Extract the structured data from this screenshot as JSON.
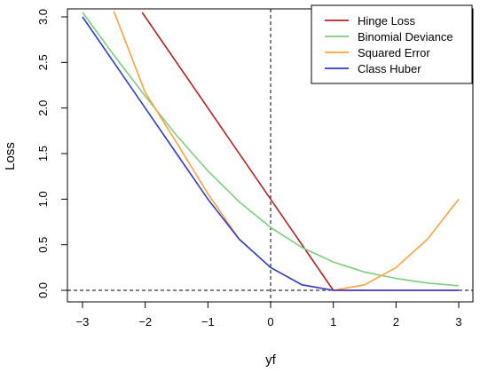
{
  "chart_data": {
    "type": "line",
    "title": "",
    "xlabel": "yf",
    "ylabel": "Loss",
    "xlim": [
      -3,
      3
    ],
    "ylim": [
      0,
      3
    ],
    "xticks": [
      -3,
      -2,
      -1,
      0,
      1,
      2,
      3
    ],
    "yticks": [
      0.0,
      0.5,
      1.0,
      1.5,
      2.0,
      2.5,
      3.0
    ],
    "xtick_labels": [
      "−3",
      "−2",
      "−1",
      "0",
      "1",
      "2",
      "3"
    ],
    "ytick_labels": [
      "0.0",
      "0.5",
      "1.0",
      "1.5",
      "2.0",
      "2.5",
      "3.0"
    ],
    "grid": false,
    "legend_position": "top-right",
    "reference_lines": [
      {
        "orientation": "vertical",
        "at": 0,
        "style": "dashed",
        "color": "#000000"
      },
      {
        "orientation": "horizontal",
        "at": 0,
        "style": "dashed",
        "color": "#000000"
      }
    ],
    "series": [
      {
        "name": "Hinge Loss",
        "color": "#b22222",
        "x": [
          -2.05,
          1,
          3
        ],
        "y": [
          3.05,
          0,
          0
        ]
      },
      {
        "name": "Binomial Deviance",
        "color": "#7ccd7c",
        "x": [
          -3,
          -2.5,
          -2,
          -1.5,
          -1,
          -0.5,
          0,
          0.5,
          1,
          1.5,
          2,
          2.5,
          3
        ],
        "y": [
          3.05,
          2.58,
          2.13,
          1.7,
          1.31,
          0.97,
          0.69,
          0.47,
          0.31,
          0.2,
          0.13,
          0.08,
          0.05
        ]
      },
      {
        "name": "Squared Error",
        "color": "#ffa040",
        "x": [
          -2.5,
          -2,
          -1.5,
          -1,
          -0.5,
          0,
          0.5,
          1,
          1.5,
          2,
          2.5,
          3
        ],
        "y": [
          3.06,
          2.17,
          1.62,
          1.06,
          0.56,
          0.25,
          0.06,
          0,
          0.06,
          0.25,
          0.56,
          1.0
        ]
      },
      {
        "name": "Class Huber",
        "color": "#2d3cc8",
        "x": [
          -3,
          -2,
          -1.5,
          -1,
          -0.5,
          0,
          0.5,
          1,
          3
        ],
        "y": [
          3.0,
          2.0,
          1.5,
          1.0,
          0.56,
          0.25,
          0.06,
          0,
          0
        ]
      }
    ]
  }
}
